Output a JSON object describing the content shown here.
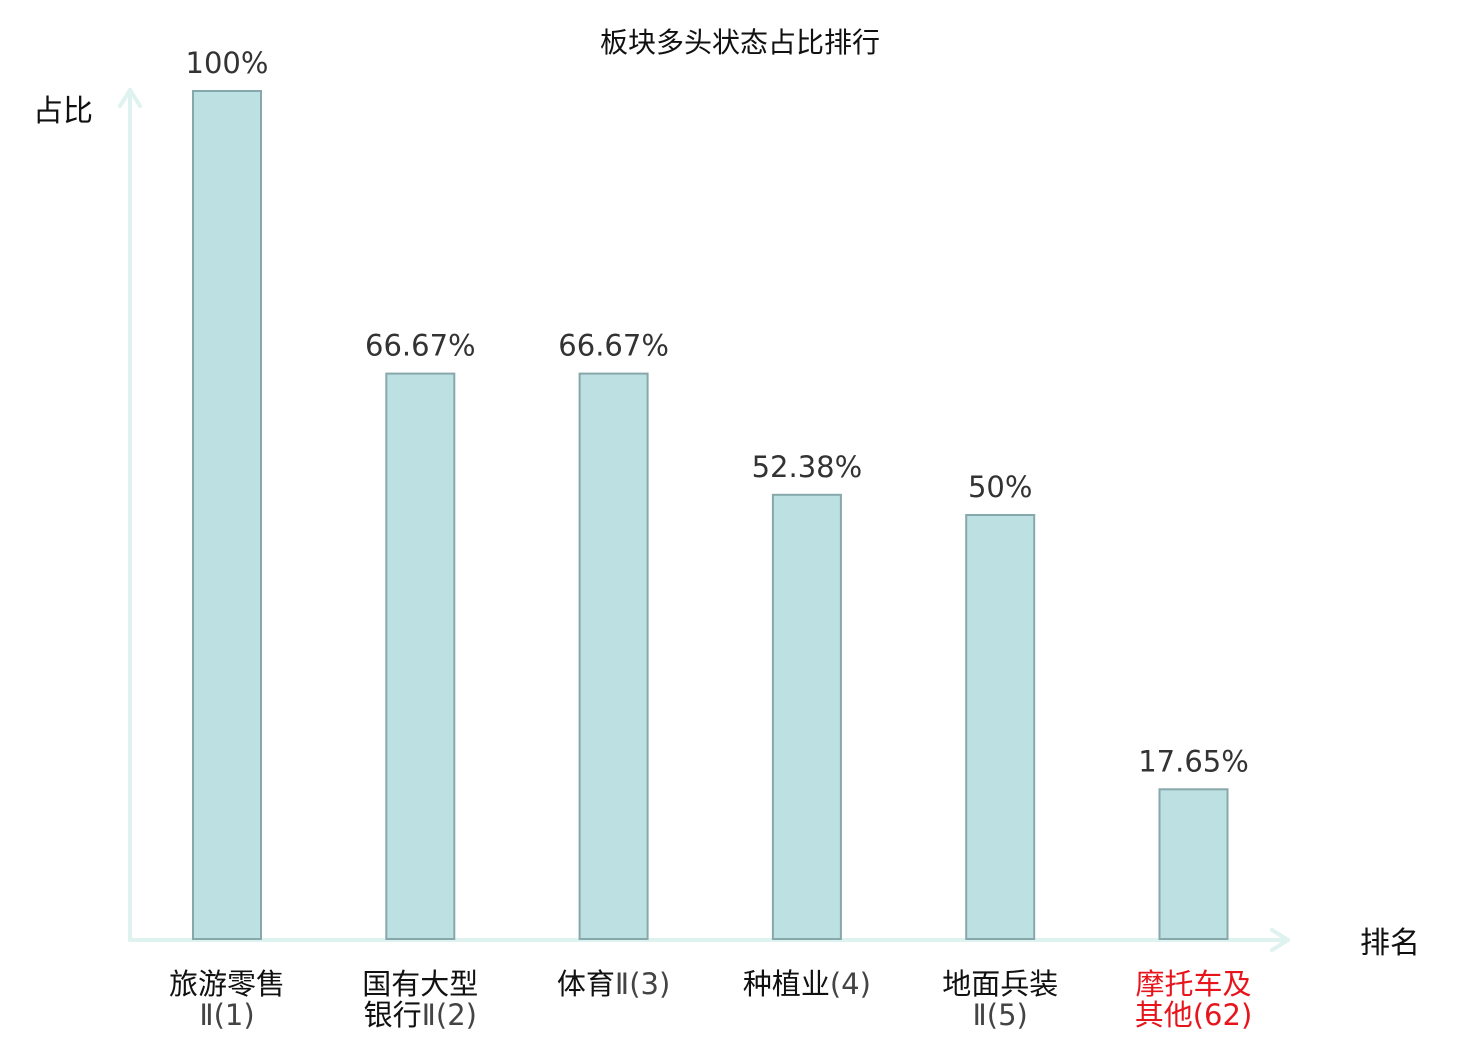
{
  "chart_data": {
    "type": "bar",
    "title": "板块多头状态占比排行",
    "ylabel": "占比",
    "xlabel": "排名",
    "ylim": [
      0,
      100
    ],
    "grid": false,
    "categories": [
      {
        "name": "旅游零售",
        "suffix": "Ⅱ(1)"
      },
      {
        "name": "国有大型",
        "suffix": "银行Ⅱ(2)"
      },
      {
        "name": "体育",
        "suffix": "Ⅱ(3)"
      },
      {
        "name": "种植业",
        "suffix": "(4)"
      },
      {
        "name": "地面兵装",
        "suffix": "Ⅱ(5)"
      },
      {
        "name": "摩托车及",
        "suffix": "其他(62)"
      }
    ],
    "values": [
      100,
      66.67,
      66.67,
      52.38,
      50,
      17.65
    ],
    "value_labels": [
      "100%",
      "66.67%",
      "66.67%",
      "52.38%",
      "50%",
      "17.65%"
    ],
    "highlight_index": 5
  },
  "colors": {
    "bar_fill": "#bde0e2",
    "bar_stroke": "#86a8ab",
    "axis": "#def2ef",
    "text": "#111111",
    "value_text": "#333333",
    "cat_suffix": "#444444",
    "highlight": "#e8141c"
  }
}
